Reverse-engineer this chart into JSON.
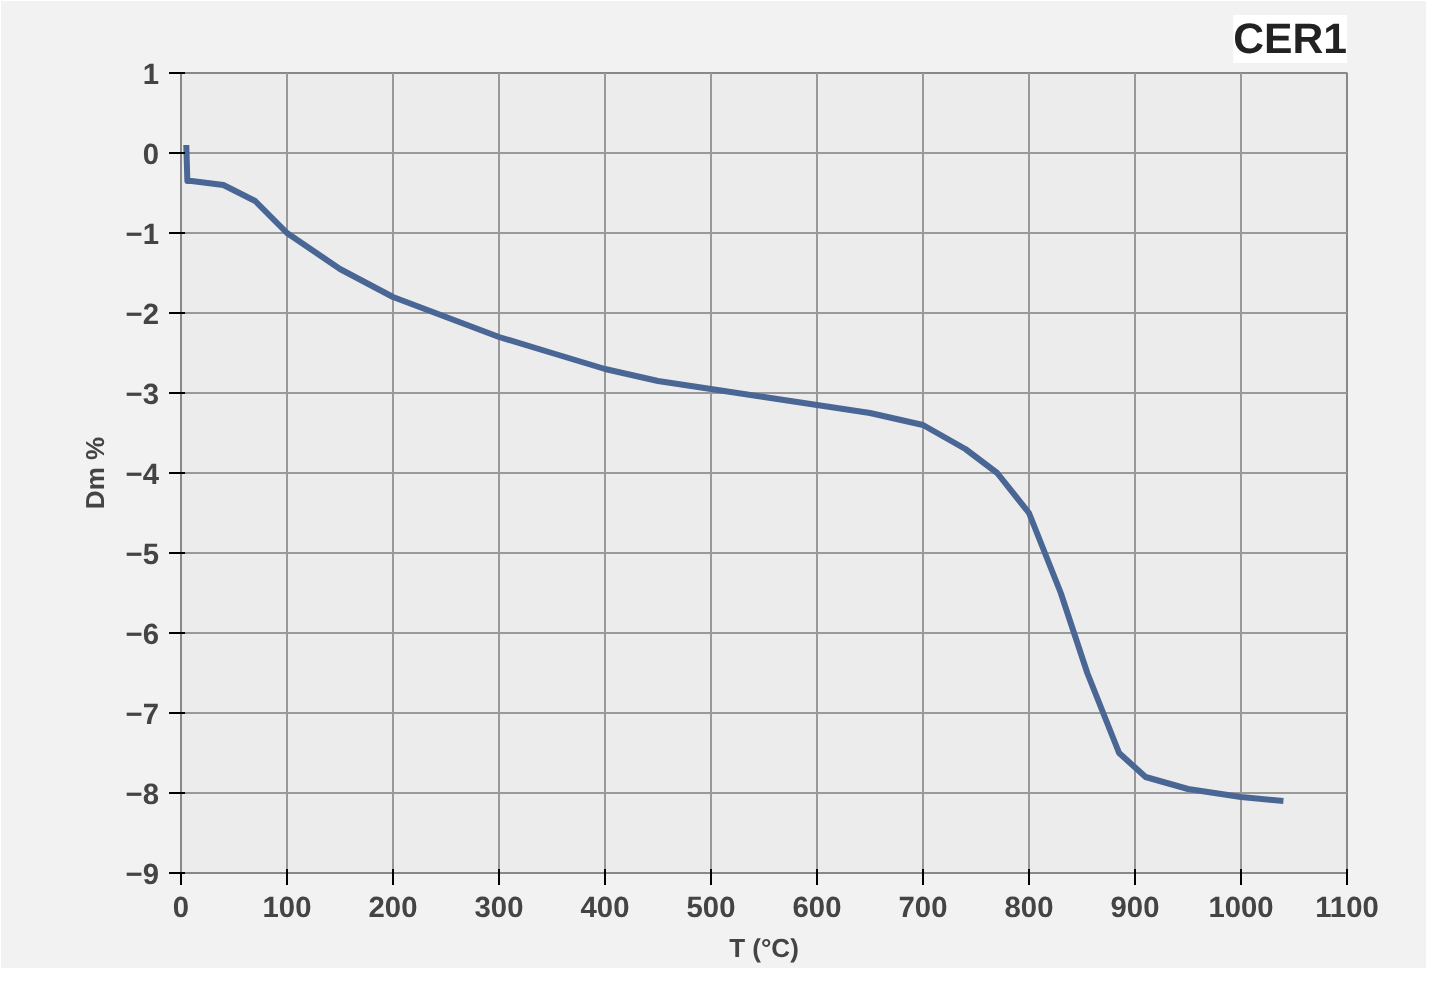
{
  "chart_data": {
    "type": "line",
    "title": "CER1",
    "xlabel": "T (°C)",
    "ylabel": "Dm %",
    "x": [
      5,
      6,
      10,
      40,
      70,
      100,
      150,
      200,
      250,
      300,
      350,
      400,
      450,
      500,
      550,
      600,
      650,
      700,
      740,
      770,
      800,
      830,
      855,
      885,
      910,
      950,
      1000,
      1040
    ],
    "series": [
      {
        "color": "#4a6694",
        "values": [
          0.1,
          -0.35,
          -0.35,
          -0.4,
          -0.6,
          -1.0,
          -1.45,
          -1.8,
          -2.05,
          -2.3,
          -2.5,
          -2.7,
          -2.85,
          -2.95,
          -3.05,
          -3.15,
          -3.25,
          -3.4,
          -3.7,
          -4.0,
          -4.5,
          -5.5,
          -6.5,
          -7.5,
          -7.8,
          -7.95,
          -8.05,
          -8.1
        ]
      }
    ],
    "xlim": [
      0,
      1100
    ],
    "xticks": [
      0,
      100,
      200,
      300,
      400,
      500,
      600,
      700,
      800,
      900,
      1000,
      1100
    ],
    "ylim": [
      -9,
      1
    ],
    "yticks": [
      -9,
      -8,
      -7,
      -6,
      -5,
      -4,
      -3,
      -2,
      -1,
      0,
      1
    ],
    "grid": true,
    "marker": "none",
    "line_style": "solid"
  }
}
